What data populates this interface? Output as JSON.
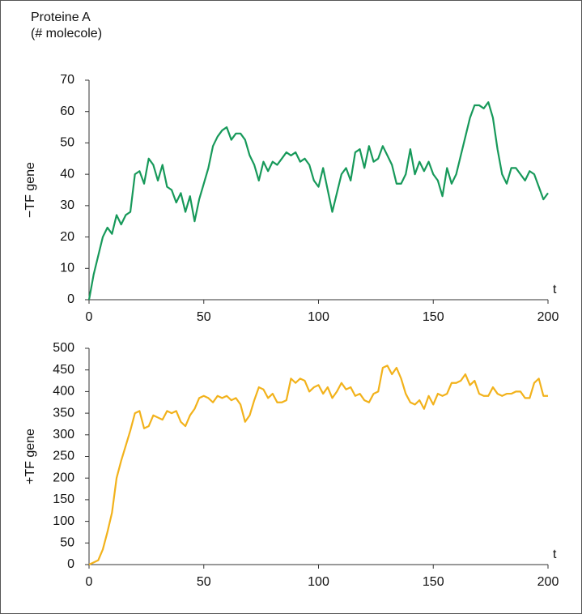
{
  "chart_data": [
    {
      "type": "line",
      "title": "Proteine A",
      "subtitle": "(# molecole)",
      "ylabel": "−TF gene",
      "xlabel": "t",
      "xlim": [
        0,
        200
      ],
      "xticks": [
        0,
        50,
        100,
        150,
        200
      ],
      "ylim": [
        0,
        70
      ],
      "yticks": [
        0,
        10,
        20,
        30,
        40,
        50,
        60,
        70
      ],
      "x": [
        0,
        2,
        4,
        6,
        8,
        10,
        12,
        14,
        16,
        18,
        20,
        22,
        24,
        26,
        28,
        30,
        32,
        34,
        36,
        38,
        40,
        42,
        44,
        46,
        48,
        50,
        52,
        54,
        56,
        58,
        60,
        62,
        64,
        66,
        68,
        70,
        72,
        74,
        76,
        78,
        80,
        82,
        84,
        86,
        88,
        90,
        92,
        94,
        96,
        98,
        100,
        102,
        104,
        106,
        108,
        110,
        112,
        114,
        116,
        118,
        120,
        122,
        124,
        126,
        128,
        130,
        132,
        134,
        136,
        138,
        140,
        142,
        144,
        146,
        148,
        150,
        152,
        154,
        156,
        158,
        160,
        162,
        164,
        166,
        168,
        170,
        172,
        174,
        176,
        178,
        180,
        182,
        184,
        186,
        188,
        190,
        192,
        194,
        196,
        198,
        200
      ],
      "series": [
        {
          "color": "#17995a",
          "values": [
            0,
            8,
            14,
            20,
            23,
            21,
            27,
            24,
            27,
            28,
            40,
            41,
            37,
            45,
            43,
            38,
            43,
            36,
            35,
            31,
            34,
            28,
            33,
            25,
            32,
            37,
            42,
            49,
            52,
            54,
            55,
            51,
            53,
            53,
            51,
            46,
            43,
            38,
            44,
            41,
            44,
            43,
            45,
            47,
            46,
            47,
            44,
            45,
            43,
            38,
            36,
            42,
            35,
            28,
            34,
            40,
            42,
            38,
            47,
            48,
            42,
            49,
            44,
            45,
            49,
            46,
            43,
            37,
            37,
            40,
            48,
            40,
            44,
            41,
            44,
            40,
            38,
            33,
            42,
            37,
            40,
            46,
            52,
            58,
            62,
            62,
            61,
            63,
            58,
            48,
            40,
            37,
            42,
            42,
            40,
            38,
            41,
            40,
            36,
            32,
            34
          ]
        }
      ]
    },
    {
      "type": "line",
      "ylabel": "+TF gene",
      "xlabel": "t",
      "xlim": [
        0,
        200
      ],
      "xticks": [
        0,
        50,
        100,
        150,
        200
      ],
      "ylim": [
        0,
        500
      ],
      "yticks": [
        0,
        50,
        100,
        150,
        200,
        250,
        300,
        350,
        400,
        450,
        500
      ],
      "x": [
        0,
        2,
        4,
        6,
        8,
        10,
        12,
        14,
        16,
        18,
        20,
        22,
        24,
        26,
        28,
        30,
        32,
        34,
        36,
        38,
        40,
        42,
        44,
        46,
        48,
        50,
        52,
        54,
        56,
        58,
        60,
        62,
        64,
        66,
        68,
        70,
        72,
        74,
        76,
        78,
        80,
        82,
        84,
        86,
        88,
        90,
        92,
        94,
        96,
        98,
        100,
        102,
        104,
        106,
        108,
        110,
        112,
        114,
        116,
        118,
        120,
        122,
        124,
        126,
        128,
        130,
        132,
        134,
        136,
        138,
        140,
        142,
        144,
        146,
        148,
        150,
        152,
        154,
        156,
        158,
        160,
        162,
        164,
        166,
        168,
        170,
        172,
        174,
        176,
        178,
        180,
        182,
        184,
        186,
        188,
        190,
        192,
        194,
        196,
        198,
        200
      ],
      "series": [
        {
          "color": "#f2b21b",
          "values": [
            0,
            5,
            10,
            35,
            75,
            120,
            200,
            240,
            275,
            310,
            350,
            355,
            315,
            320,
            345,
            340,
            335,
            355,
            350,
            355,
            330,
            320,
            345,
            360,
            385,
            390,
            385,
            375,
            390,
            385,
            390,
            380,
            385,
            370,
            330,
            345,
            380,
            410,
            405,
            385,
            395,
            375,
            375,
            380,
            430,
            420,
            430,
            425,
            400,
            410,
            415,
            395,
            410,
            385,
            400,
            420,
            405,
            410,
            390,
            395,
            380,
            375,
            395,
            400,
            455,
            460,
            440,
            455,
            430,
            395,
            375,
            370,
            380,
            360,
            390,
            370,
            395,
            390,
            395,
            420,
            420,
            425,
            440,
            415,
            425,
            395,
            390,
            390,
            410,
            395,
            390,
            395,
            395,
            400,
            400,
            385,
            385,
            420,
            430,
            390,
            390
          ]
        }
      ]
    }
  ]
}
